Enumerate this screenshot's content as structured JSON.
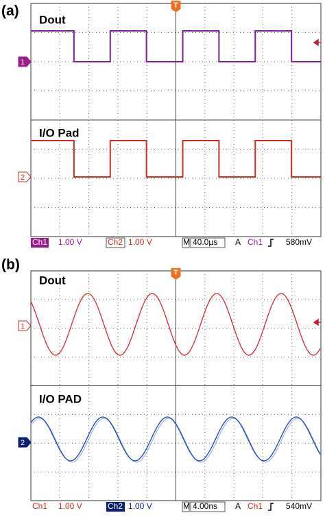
{
  "panels": [
    {
      "label": "(a)",
      "trigger": "T",
      "traces": [
        {
          "name": "Dout",
          "marker": "1"
        },
        {
          "name": "I/O Pad",
          "marker": "2"
        }
      ],
      "status": {
        "ch1": "Ch1",
        "ch1_scale": "1.00 V",
        "ch2": "Ch2",
        "ch2_scale": "1.00 V",
        "mode": "M",
        "timebase": "40.0µs",
        "acq": "A",
        "trigger_source": "Ch1",
        "trigger_level": "580mV"
      }
    },
    {
      "label": "(b)",
      "trigger": "T",
      "traces": [
        {
          "name": "Dout",
          "marker": "1"
        },
        {
          "name": "I/O PAD",
          "marker": "2"
        }
      ],
      "status": {
        "ch1": "Ch1",
        "ch1_scale": "1.00 V",
        "ch2": "Ch2",
        "ch2_scale": "1.00 V",
        "mode": "M",
        "timebase": "4.00ns",
        "acq": "A",
        "trigger_source": "Ch1",
        "trigger_level": "540mV"
      }
    }
  ]
}
